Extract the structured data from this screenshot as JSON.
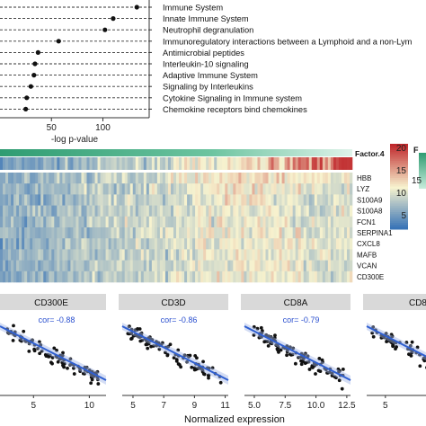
{
  "colors": {
    "header_bar": "#3aa37f",
    "strip": "#d9d9d9",
    "regression": "#2f5fd0",
    "cor_text": "#2a4fcf",
    "heat_low": "#2f6db5",
    "heat_mid": "#f7f3cf",
    "heat_high": "#c0282c"
  },
  "chart_data": [
    {
      "type": "scatter",
      "subtype": "dot-plot",
      "categories": [
        "Immune System",
        "Innate Immune System",
        "Neutrophil degranulation",
        "Immunoregulatory interactions between a Lymphoid and a non-Lym",
        "Antimicrobial peptides",
        "Interleukin-10 signaling",
        "Adaptive Immune System",
        "Signaling by Interleukins",
        "Cytokine Signaling in Immune system",
        "Chemokine receptors bind chemokines"
      ],
      "values": [
        133,
        110,
        102,
        57,
        37,
        34,
        33,
        30,
        26,
        25
      ],
      "xlabel": "-log p-value",
      "xticks": [
        50,
        100
      ],
      "xlim": [
        0,
        145
      ]
    },
    {
      "type": "heatmap",
      "annotation_label": "Factor.4",
      "rows": [
        "HBB",
        "LYZ",
        "S100A9",
        "S100A8",
        "FCN1",
        "SERPINA1",
        "CXCL8",
        "MAFB",
        "VCAN",
        "CD300E"
      ],
      "colorbar_ticks": [
        20,
        15,
        10,
        5
      ],
      "colorbar_range": [
        2,
        21
      ],
      "legend_label_partial": "F",
      "annotation_legend_ticks": [
        "15"
      ]
    },
    {
      "type": "scatter",
      "xlabel": "Normalized expression",
      "panels": [
        {
          "title": "CD300E",
          "cor": "cor= -0.88",
          "xticks": [
            "5",
            "10"
          ],
          "xlim": [
            2,
            11.5
          ]
        },
        {
          "title": "CD3D",
          "cor": "cor= -0.86",
          "xticks": [
            "5",
            "7",
            "9",
            "11"
          ],
          "xlim": [
            4.3,
            11.2
          ]
        },
        {
          "title": "CD8A",
          "cor": "cor= -0.79",
          "xticks": [
            "5.0",
            "7.5",
            "10.0",
            "12.5"
          ],
          "xlim": [
            4.2,
            12.8
          ]
        },
        {
          "title": "CD8",
          "xticks": [
            "5"
          ],
          "xlim": [
            3.5,
            12
          ]
        }
      ]
    }
  ]
}
